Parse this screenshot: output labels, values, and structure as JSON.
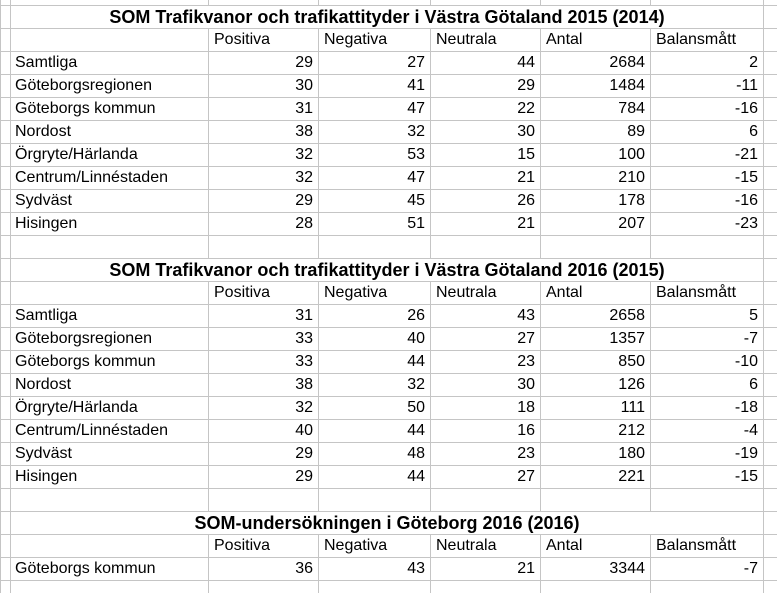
{
  "app": {
    "kind": "spreadsheet-sheet"
  },
  "colors": {
    "gridline": "#c5c5c5",
    "background": "#ffffff",
    "text": "#000000"
  },
  "columns": [
    "Positiva",
    "Negativa",
    "Neutrala",
    "Antal",
    "Balansmått"
  ],
  "tables": [
    {
      "title": "SOM Trafikvanor och trafikattityder i Västra Götaland 2015 (2014)",
      "rows": [
        {
          "label": "Samtliga",
          "values": [
            29,
            27,
            44,
            2684,
            2
          ]
        },
        {
          "label": "Göteborgsregionen",
          "values": [
            30,
            41,
            29,
            1484,
            -11
          ]
        },
        {
          "label": "Göteborgs kommun",
          "values": [
            31,
            47,
            22,
            784,
            -16
          ]
        },
        {
          "label": "Nordost",
          "values": [
            38,
            32,
            30,
            89,
            6
          ]
        },
        {
          "label": "Örgryte/Härlanda",
          "values": [
            32,
            53,
            15,
            100,
            -21
          ]
        },
        {
          "label": "Centrum/Linnéstaden",
          "values": [
            32,
            47,
            21,
            210,
            -15
          ]
        },
        {
          "label": "Sydväst",
          "values": [
            29,
            45,
            26,
            178,
            -16
          ]
        },
        {
          "label": "Hisingen",
          "values": [
            28,
            51,
            21,
            207,
            -23
          ]
        }
      ]
    },
    {
      "title": "SOM Trafikvanor och trafikattityder i Västra Götaland 2016 (2015)",
      "rows": [
        {
          "label": "Samtliga",
          "values": [
            31,
            26,
            43,
            2658,
            5
          ]
        },
        {
          "label": "Göteborgsregionen",
          "values": [
            33,
            40,
            27,
            1357,
            -7
          ]
        },
        {
          "label": "Göteborgs kommun",
          "values": [
            33,
            44,
            23,
            850,
            -10
          ]
        },
        {
          "label": "Nordost",
          "values": [
            38,
            32,
            30,
            126,
            6
          ]
        },
        {
          "label": "Örgryte/Härlanda",
          "values": [
            32,
            50,
            18,
            111,
            -18
          ]
        },
        {
          "label": "Centrum/Linnéstaden",
          "values": [
            40,
            44,
            16,
            212,
            -4
          ]
        },
        {
          "label": "Sydväst",
          "values": [
            29,
            48,
            23,
            180,
            -19
          ]
        },
        {
          "label": "Hisingen",
          "values": [
            29,
            44,
            27,
            221,
            -15
          ]
        }
      ]
    },
    {
      "title": "SOM-undersökningen i Göteborg 2016 (2016)",
      "rows": [
        {
          "label": "Göteborgs kommun",
          "values": [
            36,
            43,
            21,
            3344,
            -7
          ]
        }
      ]
    }
  ]
}
